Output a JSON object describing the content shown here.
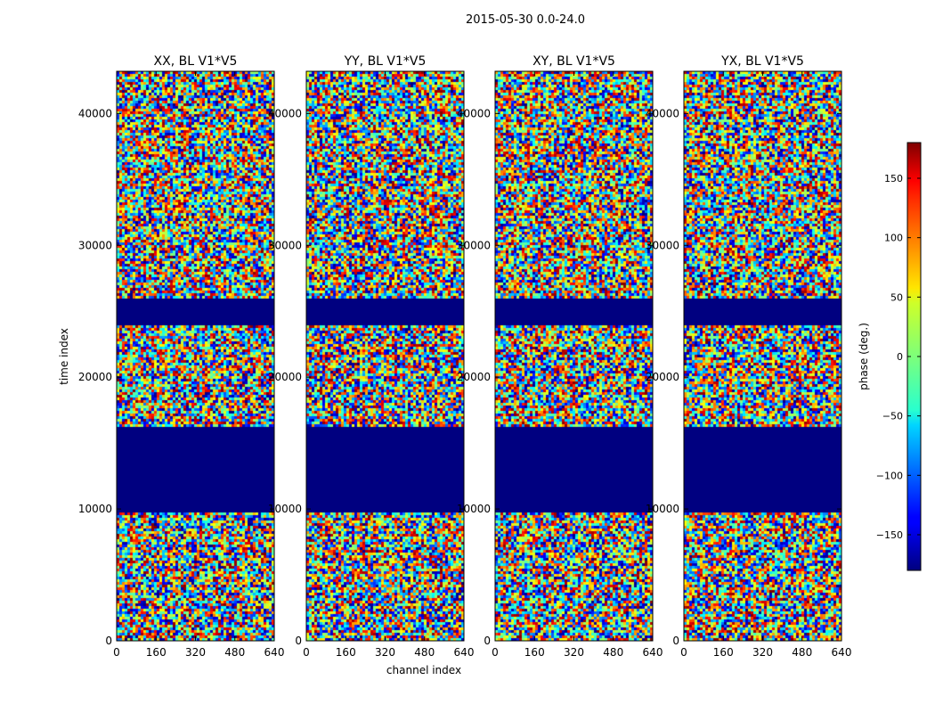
{
  "chart_data": {
    "type": "heatmap",
    "title": "2015-05-30 0.0-24.0",
    "xlabel": "channel index",
    "ylabel": "time index",
    "x_ticks": [
      0,
      160,
      320,
      480,
      640
    ],
    "y_ticks": [
      0,
      10000,
      20000,
      30000,
      40000
    ],
    "xlim": [
      0,
      640
    ],
    "ylim": [
      0,
      43200
    ],
    "panels": [
      {
        "title": "XX, BL V1*V5",
        "pol": "XX"
      },
      {
        "title": "YY, BL V1*V5",
        "pol": "YY"
      },
      {
        "title": "XY, BL V1*V5",
        "pol": "XY"
      },
      {
        "title": "YX, BL V1*V5",
        "pol": "YX"
      }
    ],
    "flagged_value_deg": -180,
    "flagged_time_ranges": [
      [
        9700,
        16300
      ],
      [
        24000,
        26000
      ]
    ],
    "colorbar": {
      "label": "phase (deg.)",
      "range": [
        -180,
        180
      ],
      "ticks": [
        -150,
        -100,
        -50,
        0,
        50,
        100,
        150
      ],
      "tick_labels": [
        "−150",
        "−100",
        "−50",
        "0",
        "50",
        "100",
        "150"
      ],
      "colormap": "jet"
    }
  }
}
